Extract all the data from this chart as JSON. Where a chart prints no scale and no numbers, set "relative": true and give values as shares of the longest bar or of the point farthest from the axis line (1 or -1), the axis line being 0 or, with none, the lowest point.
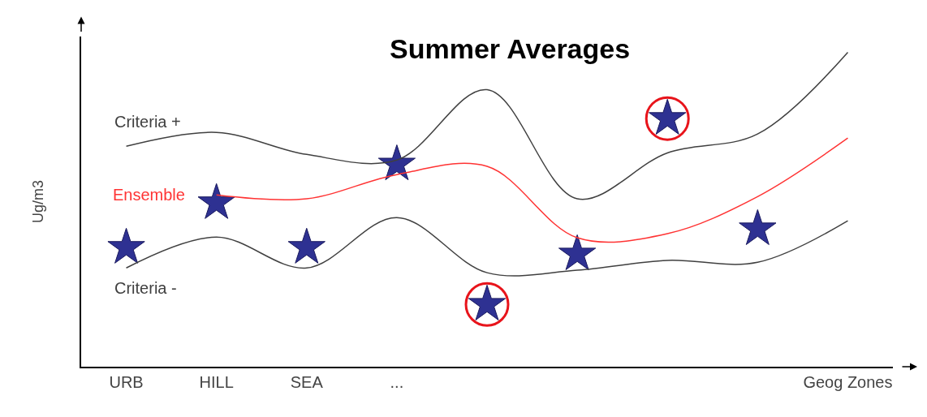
{
  "chart_data": {
    "type": "line",
    "title": "Summer Averages",
    "ylabel": "Ug/m3",
    "relative": true,
    "categories": [
      "URB",
      "HILL",
      "SEA",
      "...",
      null,
      null,
      null,
      null,
      "Geog Zones"
    ],
    "series": [
      {
        "name": "Criteria +",
        "color": "#404040",
        "marker": "none",
        "values": [
          0.701,
          0.745,
          0.675,
          0.657,
          0.881,
          0.534,
          0.68,
          0.74,
          1.0
        ]
      },
      {
        "name": "Ensemble",
        "color": "#ff3333",
        "marker": "none",
        "values": [
          null,
          0.546,
          0.534,
          0.611,
          0.637,
          0.41,
          0.423,
          0.541,
          0.727
        ]
      },
      {
        "name": "Criteria -",
        "color": "#404040",
        "marker": "none",
        "values": [
          0.314,
          0.412,
          0.314,
          0.474,
          0.299,
          0.307,
          0.338,
          0.332,
          0.464
        ]
      },
      {
        "type": "scatter",
        "color": "#2e3192",
        "marker": "star",
        "values": [
          0.379,
          0.521,
          0.379,
          0.644,
          0.198,
          0.358,
          0.789,
          0.438,
          null
        ]
      },
      {
        "type": "scatter",
        "color": "#e8141b",
        "marker": "circle",
        "values": [
          null,
          null,
          null,
          null,
          0.198,
          null,
          0.789,
          null,
          null
        ]
      }
    ]
  }
}
